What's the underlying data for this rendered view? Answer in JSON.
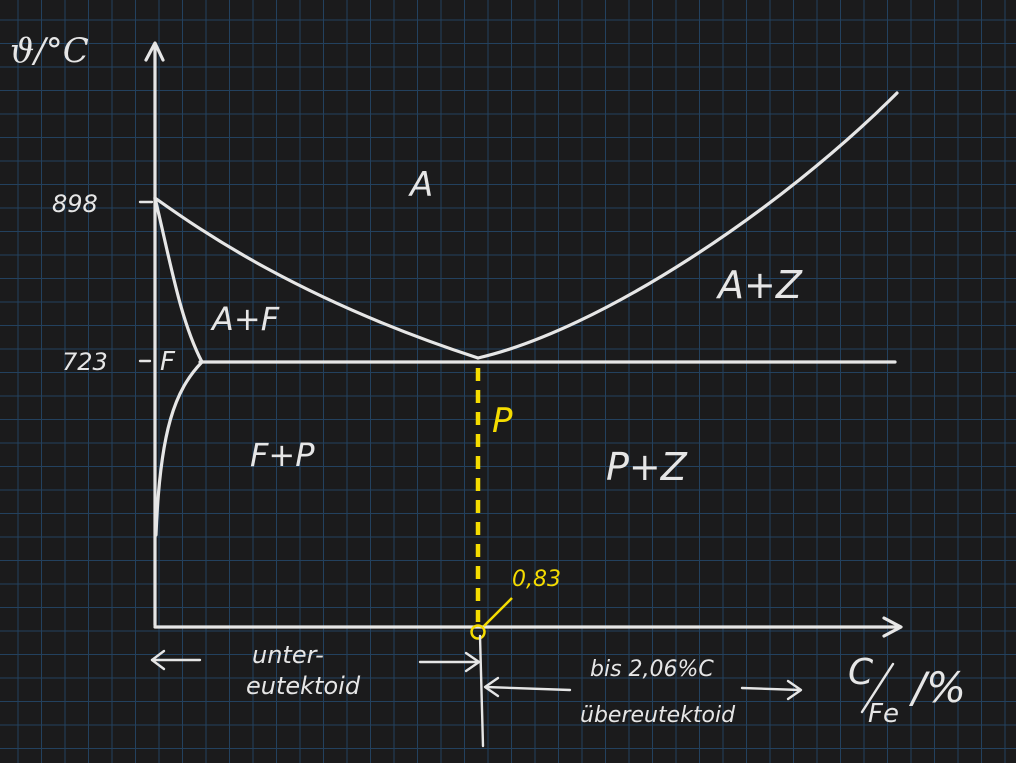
{
  "axes": {
    "y_label": "ϑ/°C",
    "x_label_numerator": "C",
    "x_label_denominator": "Fe",
    "x_label_unit": "/%",
    "y_ticks": [
      "898",
      "723"
    ]
  },
  "regions": {
    "austenite": "A",
    "austenite_ferrite": "A+F",
    "ferrite": "F",
    "ferrite_pearlite": "F+P",
    "pearlite": "P",
    "pearlite_cementite": "P+Z",
    "austenite_cementite": "A+Z"
  },
  "eutectoid": {
    "value": "0,83",
    "color": "#f5dc00"
  },
  "ranges": {
    "hypo_line1": "unter-",
    "hypo_line2": "eutektoid",
    "hyper_limit": "bis 2,06%C",
    "hyper_label": "übereutektoid"
  },
  "colors": {
    "background": "#1b1b1c",
    "grid": "#23415e",
    "ink": "#e6e6e6",
    "highlight": "#f5dc00"
  }
}
